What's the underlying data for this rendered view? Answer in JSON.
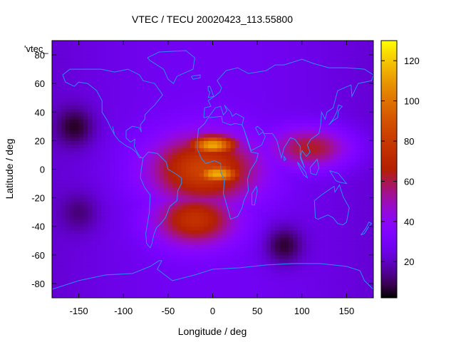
{
  "chart_data": {
    "type": "heatmap",
    "title": "VTEC / TECU 20020423_113.55800",
    "xlabel": "Longitude / deg",
    "ylabel": "Latitude / deg",
    "key_label": "'vtec_",
    "xlim": [
      -180,
      180
    ],
    "ylim": [
      -90,
      90
    ],
    "xticks": [
      -150,
      -100,
      -50,
      0,
      50,
      100,
      150
    ],
    "yticks": [
      -80,
      -60,
      -40,
      -20,
      0,
      20,
      40,
      60,
      80
    ],
    "colorbar": {
      "range": [
        2,
        130
      ],
      "ticks": [
        20,
        40,
        60,
        80,
        100,
        120
      ]
    },
    "grid_resolution_deg": [
      5,
      2.5
    ],
    "field_model": {
      "background_tecu": 22,
      "features": [
        {
          "kind": "equatorial_anomaly_crest",
          "lon": 0,
          "lat": 17,
          "peak_tecu": 108
        },
        {
          "kind": "equatorial_anomaly_crest",
          "lon": 5,
          "lat": -3,
          "peak_tecu": 110
        },
        {
          "kind": "daytime_bulge",
          "lon": -10,
          "lat": 0,
          "peak_tecu": 78
        },
        {
          "kind": "southern_extension",
          "lon": -20,
          "lat": -35,
          "peak_tecu": 70
        },
        {
          "kind": "eastern_tail",
          "lon": 110,
          "lat": 15,
          "peak_tecu": 60
        },
        {
          "kind": "night_minimum",
          "lon": -155,
          "lat": 30,
          "peak_tecu": 5
        },
        {
          "kind": "night_minimum",
          "lon": 80,
          "lat": -53,
          "peak_tecu": 6
        },
        {
          "kind": "night_minimum",
          "lon": -150,
          "lat": -30,
          "peak_tecu": 12
        }
      ]
    },
    "coastlines": [
      {
        "name": "north-america",
        "points": [
          [
            -168,
            66
          ],
          [
            -160,
            70
          ],
          [
            -140,
            70
          ],
          [
            -125,
            70
          ],
          [
            -110,
            68
          ],
          [
            -95,
            70
          ],
          [
            -82,
            66
          ],
          [
            -78,
            62
          ],
          [
            -65,
            60
          ],
          [
            -56,
            52
          ],
          [
            -65,
            45
          ],
          [
            -70,
            42
          ],
          [
            -76,
            38
          ],
          [
            -76,
            35
          ],
          [
            -81,
            31
          ],
          [
            -80,
            26
          ],
          [
            -82,
            29
          ],
          [
            -90,
            30
          ],
          [
            -97,
            27
          ],
          [
            -97,
            22
          ],
          [
            -92,
            19
          ],
          [
            -87,
            21
          ],
          [
            -88,
            16
          ],
          [
            -84,
            11
          ],
          [
            -80,
            8
          ],
          [
            -78,
            8
          ],
          [
            -82,
            8
          ],
          [
            -86,
            12
          ],
          [
            -92,
            15
          ],
          [
            -96,
            16
          ],
          [
            -105,
            20
          ],
          [
            -110,
            24
          ],
          [
            -112,
            30
          ],
          [
            -110,
            24
          ],
          [
            -115,
            30
          ],
          [
            -118,
            34
          ],
          [
            -124,
            40
          ],
          [
            -124,
            48
          ],
          [
            -130,
            55
          ],
          [
            -140,
            60
          ],
          [
            -150,
            61
          ],
          [
            -155,
            58
          ],
          [
            -165,
            61
          ],
          [
            -168,
            66
          ]
        ]
      },
      {
        "name": "greenland",
        "points": [
          [
            -73,
            78
          ],
          [
            -60,
            82
          ],
          [
            -30,
            83
          ],
          [
            -20,
            78
          ],
          [
            -22,
            70
          ],
          [
            -40,
            65
          ],
          [
            -44,
            60
          ],
          [
            -50,
            63
          ],
          [
            -55,
            70
          ],
          [
            -70,
            76
          ],
          [
            -73,
            78
          ]
        ]
      },
      {
        "name": "south-america",
        "points": [
          [
            -78,
            8
          ],
          [
            -72,
            12
          ],
          [
            -62,
            11
          ],
          [
            -52,
            5
          ],
          [
            -50,
            0
          ],
          [
            -42,
            -3
          ],
          [
            -35,
            -6
          ],
          [
            -35,
            -10
          ],
          [
            -39,
            -15
          ],
          [
            -40,
            -22
          ],
          [
            -48,
            -26
          ],
          [
            -53,
            -34
          ],
          [
            -58,
            -38
          ],
          [
            -63,
            -41
          ],
          [
            -66,
            -46
          ],
          [
            -68,
            -52
          ],
          [
            -70,
            -55
          ],
          [
            -74,
            -52
          ],
          [
            -75,
            -45
          ],
          [
            -73,
            -38
          ],
          [
            -71,
            -30
          ],
          [
            -70,
            -18
          ],
          [
            -76,
            -13
          ],
          [
            -81,
            -6
          ],
          [
            -80,
            0
          ],
          [
            -78,
            8
          ]
        ]
      },
      {
        "name": "eurasia",
        "points": [
          [
            -10,
            36
          ],
          [
            -9,
            43
          ],
          [
            -2,
            44
          ],
          [
            -5,
            48
          ],
          [
            2,
            51
          ],
          [
            8,
            54
          ],
          [
            10,
            57
          ],
          [
            5,
            62
          ],
          [
            15,
            69
          ],
          [
            28,
            71
          ],
          [
            40,
            67
          ],
          [
            60,
            69
          ],
          [
            70,
            73
          ],
          [
            80,
            73
          ],
          [
            100,
            77
          ],
          [
            113,
            74
          ],
          [
            130,
            71
          ],
          [
            150,
            71
          ],
          [
            170,
            70
          ],
          [
            180,
            66
          ],
          [
            178,
            62
          ],
          [
            163,
            60
          ],
          [
            156,
            51
          ],
          [
            155,
            59
          ],
          [
            140,
            55
          ],
          [
            135,
            43
          ],
          [
            128,
            40
          ],
          [
            126,
            35
          ],
          [
            122,
            40
          ],
          [
            121,
            31
          ],
          [
            119,
            25
          ],
          [
            110,
            21
          ],
          [
            106,
            17
          ],
          [
            109,
            12
          ],
          [
            105,
            9
          ],
          [
            100,
            13
          ],
          [
            98,
            8
          ],
          [
            103,
            1
          ],
          [
            98,
            10
          ],
          [
            98,
            16
          ],
          [
            92,
            21
          ],
          [
            87,
            22
          ],
          [
            80,
            15
          ],
          [
            77,
            8
          ],
          [
            72,
            20
          ],
          [
            67,
            25
          ],
          [
            57,
            25
          ],
          [
            56,
            27
          ],
          [
            50,
            30
          ],
          [
            48,
            29
          ],
          [
            52,
            24
          ],
          [
            56,
            26
          ],
          [
            59,
            23
          ],
          [
            55,
            17
          ],
          [
            43,
            13
          ],
          [
            39,
            21
          ],
          [
            35,
            28
          ],
          [
            33,
            31
          ],
          [
            35,
            36
          ],
          [
            26,
            39
          ],
          [
            22,
            37
          ],
          [
            20,
            40
          ],
          [
            13,
            45
          ],
          [
            16,
            41
          ],
          [
            12,
            38
          ],
          [
            9,
            44
          ],
          [
            3,
            43
          ],
          [
            -4,
            37
          ],
          [
            -10,
            36
          ]
        ]
      },
      {
        "name": "africa",
        "points": [
          [
            -17,
            21
          ],
          [
            -16,
            28
          ],
          [
            -9,
            32
          ],
          [
            -5,
            36
          ],
          [
            10,
            37
          ],
          [
            11,
            33
          ],
          [
            20,
            31
          ],
          [
            25,
            32
          ],
          [
            33,
            31
          ],
          [
            35,
            28
          ],
          [
            43,
            12
          ],
          [
            51,
            11
          ],
          [
            49,
            6
          ],
          [
            42,
            -1
          ],
          [
            39,
            -7
          ],
          [
            40,
            -15
          ],
          [
            35,
            -22
          ],
          [
            33,
            -27
          ],
          [
            28,
            -33
          ],
          [
            20,
            -35
          ],
          [
            18,
            -30
          ],
          [
            12,
            -17
          ],
          [
            13,
            -8
          ],
          [
            9,
            -2
          ],
          [
            9,
            4
          ],
          [
            2,
            6
          ],
          [
            -8,
            4
          ],
          [
            -13,
            8
          ],
          [
            -17,
            14
          ],
          [
            -17,
            21
          ]
        ]
      },
      {
        "name": "australia",
        "points": [
          [
            114,
            -22
          ],
          [
            122,
            -18
          ],
          [
            129,
            -15
          ],
          [
            136,
            -12
          ],
          [
            137,
            -16
          ],
          [
            142,
            -11
          ],
          [
            146,
            -19
          ],
          [
            153,
            -27
          ],
          [
            150,
            -37
          ],
          [
            146,
            -39
          ],
          [
            140,
            -38
          ],
          [
            135,
            -34
          ],
          [
            129,
            -32
          ],
          [
            118,
            -35
          ],
          [
            115,
            -34
          ],
          [
            114,
            -22
          ]
        ]
      },
      {
        "name": "antarctica",
        "points": [
          [
            -180,
            -84
          ],
          [
            -150,
            -78
          ],
          [
            -120,
            -74
          ],
          [
            -90,
            -73
          ],
          [
            -70,
            -68
          ],
          [
            -60,
            -64
          ],
          [
            -57,
            -64
          ],
          [
            -62,
            -70
          ],
          [
            -45,
            -78
          ],
          [
            -20,
            -74
          ],
          [
            0,
            -70
          ],
          [
            30,
            -69
          ],
          [
            60,
            -67
          ],
          [
            90,
            -66
          ],
          [
            120,
            -66
          ],
          [
            150,
            -68
          ],
          [
            165,
            -71
          ],
          [
            170,
            -78
          ],
          [
            180,
            -84
          ]
        ]
      },
      {
        "name": "madagascar",
        "points": [
          [
            44,
            -25
          ],
          [
            47,
            -25
          ],
          [
            50,
            -15
          ],
          [
            49,
            -12
          ],
          [
            44,
            -17
          ],
          [
            44,
            -25
          ]
        ]
      },
      {
        "name": "uk",
        "points": [
          [
            -5,
            50
          ],
          [
            1,
            51
          ],
          [
            0,
            53
          ],
          [
            -3,
            58
          ],
          [
            -5,
            58
          ],
          [
            -5,
            55
          ],
          [
            -3,
            54
          ],
          [
            -5,
            50
          ]
        ]
      },
      {
        "name": "japan",
        "points": [
          [
            130,
            31
          ],
          [
            135,
            34
          ],
          [
            140,
            36
          ],
          [
            141,
            41
          ],
          [
            145,
            44
          ],
          [
            141,
            45
          ],
          [
            139,
            40
          ],
          [
            135,
            35
          ],
          [
            130,
            31
          ]
        ]
      },
      {
        "name": "new-zealand",
        "points": [
          [
            166,
            -46
          ],
          [
            172,
            -41
          ],
          [
            175,
            -37
          ],
          [
            178,
            -38
          ],
          [
            174,
            -41
          ],
          [
            170,
            -45
          ],
          [
            166,
            -46
          ]
        ]
      },
      {
        "name": "borneo",
        "points": [
          [
            109,
            1
          ],
          [
            117,
            7
          ],
          [
            119,
            1
          ],
          [
            116,
            -4
          ],
          [
            110,
            -3
          ],
          [
            109,
            1
          ]
        ]
      },
      {
        "name": "sumatra",
        "points": [
          [
            95,
            5
          ],
          [
            104,
            -2
          ],
          [
            106,
            -6
          ],
          [
            102,
            -4
          ],
          [
            96,
            3
          ],
          [
            95,
            5
          ]
        ]
      },
      {
        "name": "new-guinea",
        "points": [
          [
            131,
            -1
          ],
          [
            141,
            -3
          ],
          [
            150,
            -10
          ],
          [
            142,
            -9
          ],
          [
            138,
            -8
          ],
          [
            131,
            -1
          ]
        ]
      },
      {
        "name": "sri-lanka",
        "points": [
          [
            80,
            6
          ],
          [
            82,
            7
          ],
          [
            80,
            9
          ],
          [
            80,
            6
          ]
        ]
      },
      {
        "name": "iceland",
        "points": [
          [
            -24,
            65
          ],
          [
            -14,
            66
          ],
          [
            -14,
            64
          ],
          [
            -22,
            63
          ],
          [
            -24,
            65
          ]
        ]
      }
    ]
  }
}
